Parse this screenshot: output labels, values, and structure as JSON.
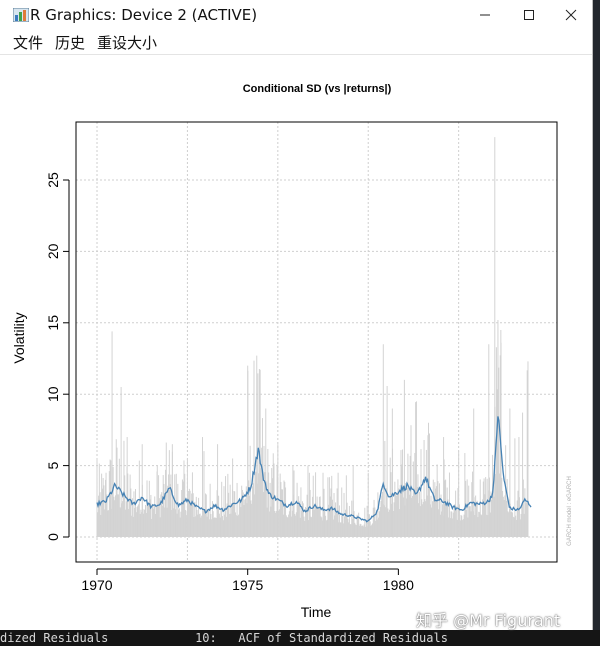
{
  "window": {
    "title": "R Graphics: Device 2 (ACTIVE)",
    "minimize_icon": "minimize-icon",
    "maximize_icon": "maximize-icon",
    "close_icon": "close-icon"
  },
  "menu": {
    "items": [
      "文件",
      "历史",
      "重设大小"
    ]
  },
  "background": {
    "bottom_text": "dized Residuals            10:   ACF of Standardized Residuals"
  },
  "watermark": "知乎 @Mr Figurant",
  "chart_data": {
    "type": "line",
    "title": "Conditional SD (vs |returns|)",
    "xlabel": "Time",
    "ylabel": "Volatility",
    "side_text": "GARCH model : eGARCH",
    "xlim": [
      1969.9,
      1984.6
    ],
    "ylim": [
      0,
      28
    ],
    "x_ticks": [
      1970,
      1975,
      1980
    ],
    "y_ticks": [
      0,
      5,
      10,
      15,
      20,
      25
    ],
    "grid": true,
    "colors": {
      "returns": "#d3d3d3",
      "sd": "#4682b4"
    },
    "series": [
      {
        "kind": "abs_returns",
        "x": [
          1970.0,
          1970.3,
          1970.5,
          1970.8,
          1971.0,
          1971.5,
          1972.0,
          1972.5,
          1973.0,
          1973.5,
          1974.0,
          1974.5,
          1975.0,
          1975.3,
          1975.6,
          1976.0,
          1976.5,
          1977.0,
          1977.5,
          1978.0,
          1978.5,
          1979.0,
          1979.5,
          1979.8,
          1980.2,
          1980.6,
          1981.0,
          1981.5,
          1982.0,
          1982.5,
          1983.0,
          1983.2,
          1983.4,
          1983.7,
          1984.0,
          1984.3
        ],
        "values": [
          5.5,
          4.5,
          14.4,
          10.5,
          7.0,
          6.5,
          5.0,
          6.5,
          5.5,
          7.0,
          6.5,
          5.5,
          12.0,
          12.7,
          9.0,
          6.5,
          5.0,
          5.0,
          4.5,
          4.5,
          5.0,
          4.5,
          13.5,
          9.0,
          11.0,
          9.5,
          8.0,
          7.0,
          6.0,
          9.0,
          13.5,
          28.0,
          14.5,
          9.0,
          7.0,
          12.3
        ]
      },
      {
        "kind": "conditional_sd",
        "x": [
          1970.0,
          1970.3,
          1970.6,
          1970.9,
          1971.2,
          1971.5,
          1971.8,
          1972.1,
          1972.4,
          1972.7,
          1973.0,
          1973.3,
          1973.6,
          1973.9,
          1974.2,
          1974.5,
          1974.8,
          1975.1,
          1975.35,
          1975.5,
          1975.7,
          1976.0,
          1976.3,
          1976.6,
          1976.9,
          1977.2,
          1977.5,
          1977.8,
          1978.1,
          1978.4,
          1978.7,
          1979.0,
          1979.3,
          1979.5,
          1979.7,
          1980.0,
          1980.3,
          1980.6,
          1980.9,
          1981.2,
          1981.5,
          1981.8,
          1982.1,
          1982.4,
          1982.7,
          1983.0,
          1983.15,
          1983.3,
          1983.5,
          1983.7,
          1984.0,
          1984.2,
          1984.4
        ],
        "values": [
          2.3,
          2.5,
          3.6,
          2.9,
          2.3,
          2.8,
          2.1,
          2.3,
          3.4,
          2.2,
          2.6,
          2.1,
          1.8,
          2.2,
          1.9,
          2.3,
          2.6,
          3.5,
          6.2,
          4.3,
          3.0,
          2.6,
          2.2,
          2.5,
          1.8,
          2.2,
          1.9,
          2.0,
          1.6,
          1.5,
          1.3,
          1.1,
          1.8,
          3.8,
          2.8,
          3.2,
          3.6,
          2.9,
          4.2,
          2.6,
          2.5,
          2.1,
          1.9,
          2.4,
          2.3,
          2.5,
          3.2,
          8.7,
          4.0,
          2.0,
          1.9,
          2.6,
          2.2
        ]
      }
    ]
  }
}
